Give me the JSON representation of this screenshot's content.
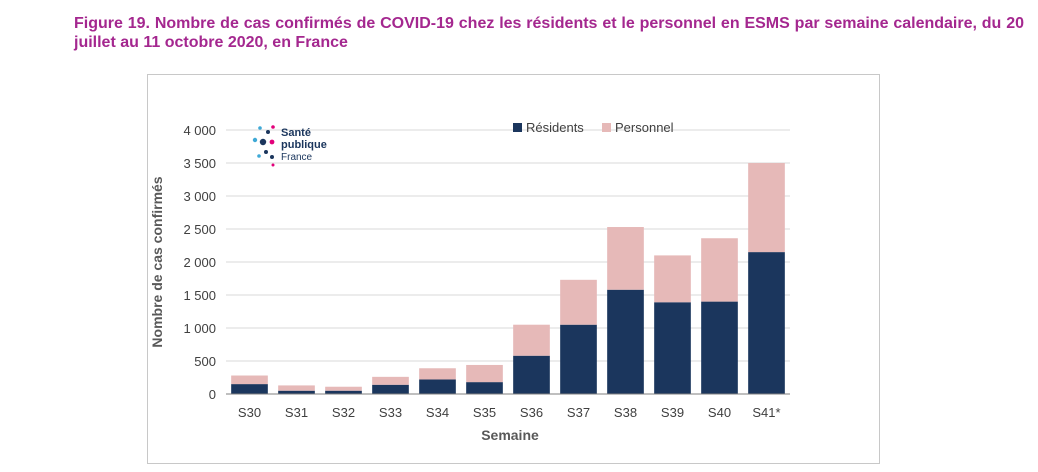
{
  "figure": {
    "title": "Figure 19. Nombre de cas confirmés de COVID-19 chez les résidents et le personnel en ESMS par semaine calendaire, du 20 juillet au 11 octobre 2020, en France"
  },
  "logo": {
    "line1": "Santé",
    "line2": "publique",
    "line3": "France"
  },
  "colors": {
    "title": "#a4278f",
    "residents": "#1b365d",
    "personnel": "#e6b9b8",
    "gridline": "#d9d9d9",
    "axis": "#7f7f7f"
  },
  "chart_data": {
    "type": "bar",
    "stacked": true,
    "categories": [
      "S30",
      "S31",
      "S32",
      "S33",
      "S34",
      "S35",
      "S36",
      "S37",
      "S38",
      "S39",
      "S40",
      "S41*"
    ],
    "series": [
      {
        "name": "Résidents",
        "values": [
          150,
          50,
          50,
          140,
          220,
          180,
          580,
          1050,
          1580,
          1390,
          1400,
          2150
        ]
      },
      {
        "name": "Personnel",
        "values": [
          130,
          80,
          60,
          120,
          170,
          260,
          470,
          680,
          950,
          710,
          960,
          1350
        ]
      }
    ],
    "xlabel": "Semaine",
    "ylabel": "Nombre de cas confirmés",
    "ylim": [
      0,
      4000
    ],
    "yticks": [
      0,
      500,
      1000,
      1500,
      2000,
      2500,
      3000,
      3500,
      4000
    ],
    "ytick_labels": [
      "0",
      "500",
      "1 000",
      "1 500",
      "2 000",
      "2 500",
      "3 000",
      "3 500",
      "4 000"
    ],
    "grid": true,
    "legend": "top-right"
  }
}
